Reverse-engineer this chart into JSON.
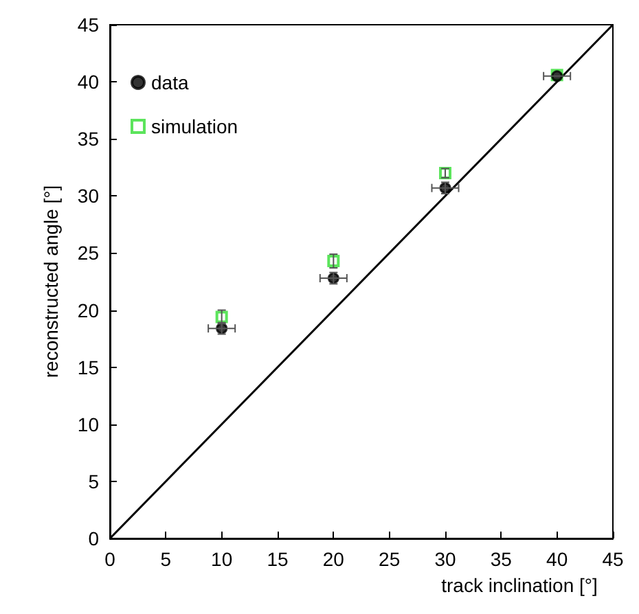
{
  "chart_data": {
    "type": "scatter",
    "xlabel": "track inclination [°]",
    "ylabel": "reconstructed angle [°]",
    "xlim": [
      0,
      45
    ],
    "ylim": [
      0,
      45
    ],
    "xticks": [
      0,
      5,
      10,
      15,
      20,
      25,
      30,
      35,
      40,
      45
    ],
    "yticks": [
      0,
      5,
      10,
      15,
      20,
      25,
      30,
      35,
      40,
      45
    ],
    "grid": false,
    "legend": "top left",
    "series": [
      {
        "name": "data",
        "color": "#000000",
        "marker": "circle",
        "x": [
          10,
          20,
          30,
          40
        ],
        "values": [
          18.4,
          22.8,
          30.7,
          40.5
        ],
        "errors": [
          0.5,
          0.5,
          0.5,
          null
        ],
        "xerrors": [
          1.2,
          1.2,
          1.2,
          1.2
        ]
      },
      {
        "name": "simulation",
        "color": "#33dd33",
        "marker": "square",
        "x": [
          10,
          20,
          30,
          40
        ],
        "values": [
          19.4,
          24.3,
          32.0,
          40.6
        ],
        "errors": [
          0.6,
          0.6,
          0.4,
          null
        ]
      },
      {
        "type": "line",
        "color": "#000000",
        "marker": "none",
        "x": [
          0,
          45
        ],
        "values": [
          0,
          45
        ]
      }
    ]
  }
}
